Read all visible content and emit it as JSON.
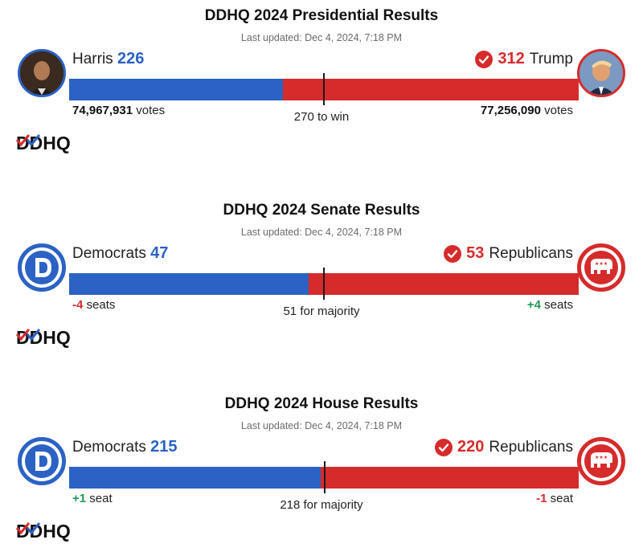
{
  "presidential": {
    "title": "DDHQ 2024 Presidential Results",
    "updated": "Last updated: Dec 4, 2024, 7:18 PM",
    "left_name": "Harris",
    "left_count": "226",
    "right_name": "Trump",
    "right_count": "312",
    "left_votes": "74,967,931",
    "votes_label": "votes",
    "right_votes": "77,256,090",
    "threshold": "270 to win",
    "winner": "right",
    "left_share": 0.42,
    "threshold_share": 0.5
  },
  "senate": {
    "title": "DDHQ 2024 Senate Results",
    "updated": "Last updated: Dec 4, 2024, 7:18 PM",
    "left_name": "Democrats",
    "left_count": "47",
    "right_name": "Republicans",
    "right_count": "53",
    "left_change": "-4",
    "left_change_label": "seats",
    "right_change": "+4",
    "right_change_label": "seats",
    "threshold": "51 for majority",
    "winner": "right",
    "left_share": 0.47,
    "threshold_share": 0.5
  },
  "house": {
    "title": "DDHQ 2024 House Results",
    "updated": "Last updated: Dec 4, 2024, 7:18 PM",
    "left_name": "Democrats",
    "left_count": "215",
    "right_name": "Republicans",
    "right_count": "220",
    "left_change": "+1",
    "left_change_label": "seat",
    "right_change": "-1",
    "right_change_label": "seat",
    "threshold": "218 for majority",
    "winner": "right",
    "left_share": 0.494,
    "threshold_share": 0.501
  },
  "brand": {
    "logo_text": "DDHQ",
    "blue": "#2b62c4",
    "red": "#d62b2b",
    "green": "#1f9a57"
  },
  "icons": {
    "check": "check-circle-icon",
    "dem": "democratic-party-icon",
    "gop": "republican-elephant-icon"
  }
}
